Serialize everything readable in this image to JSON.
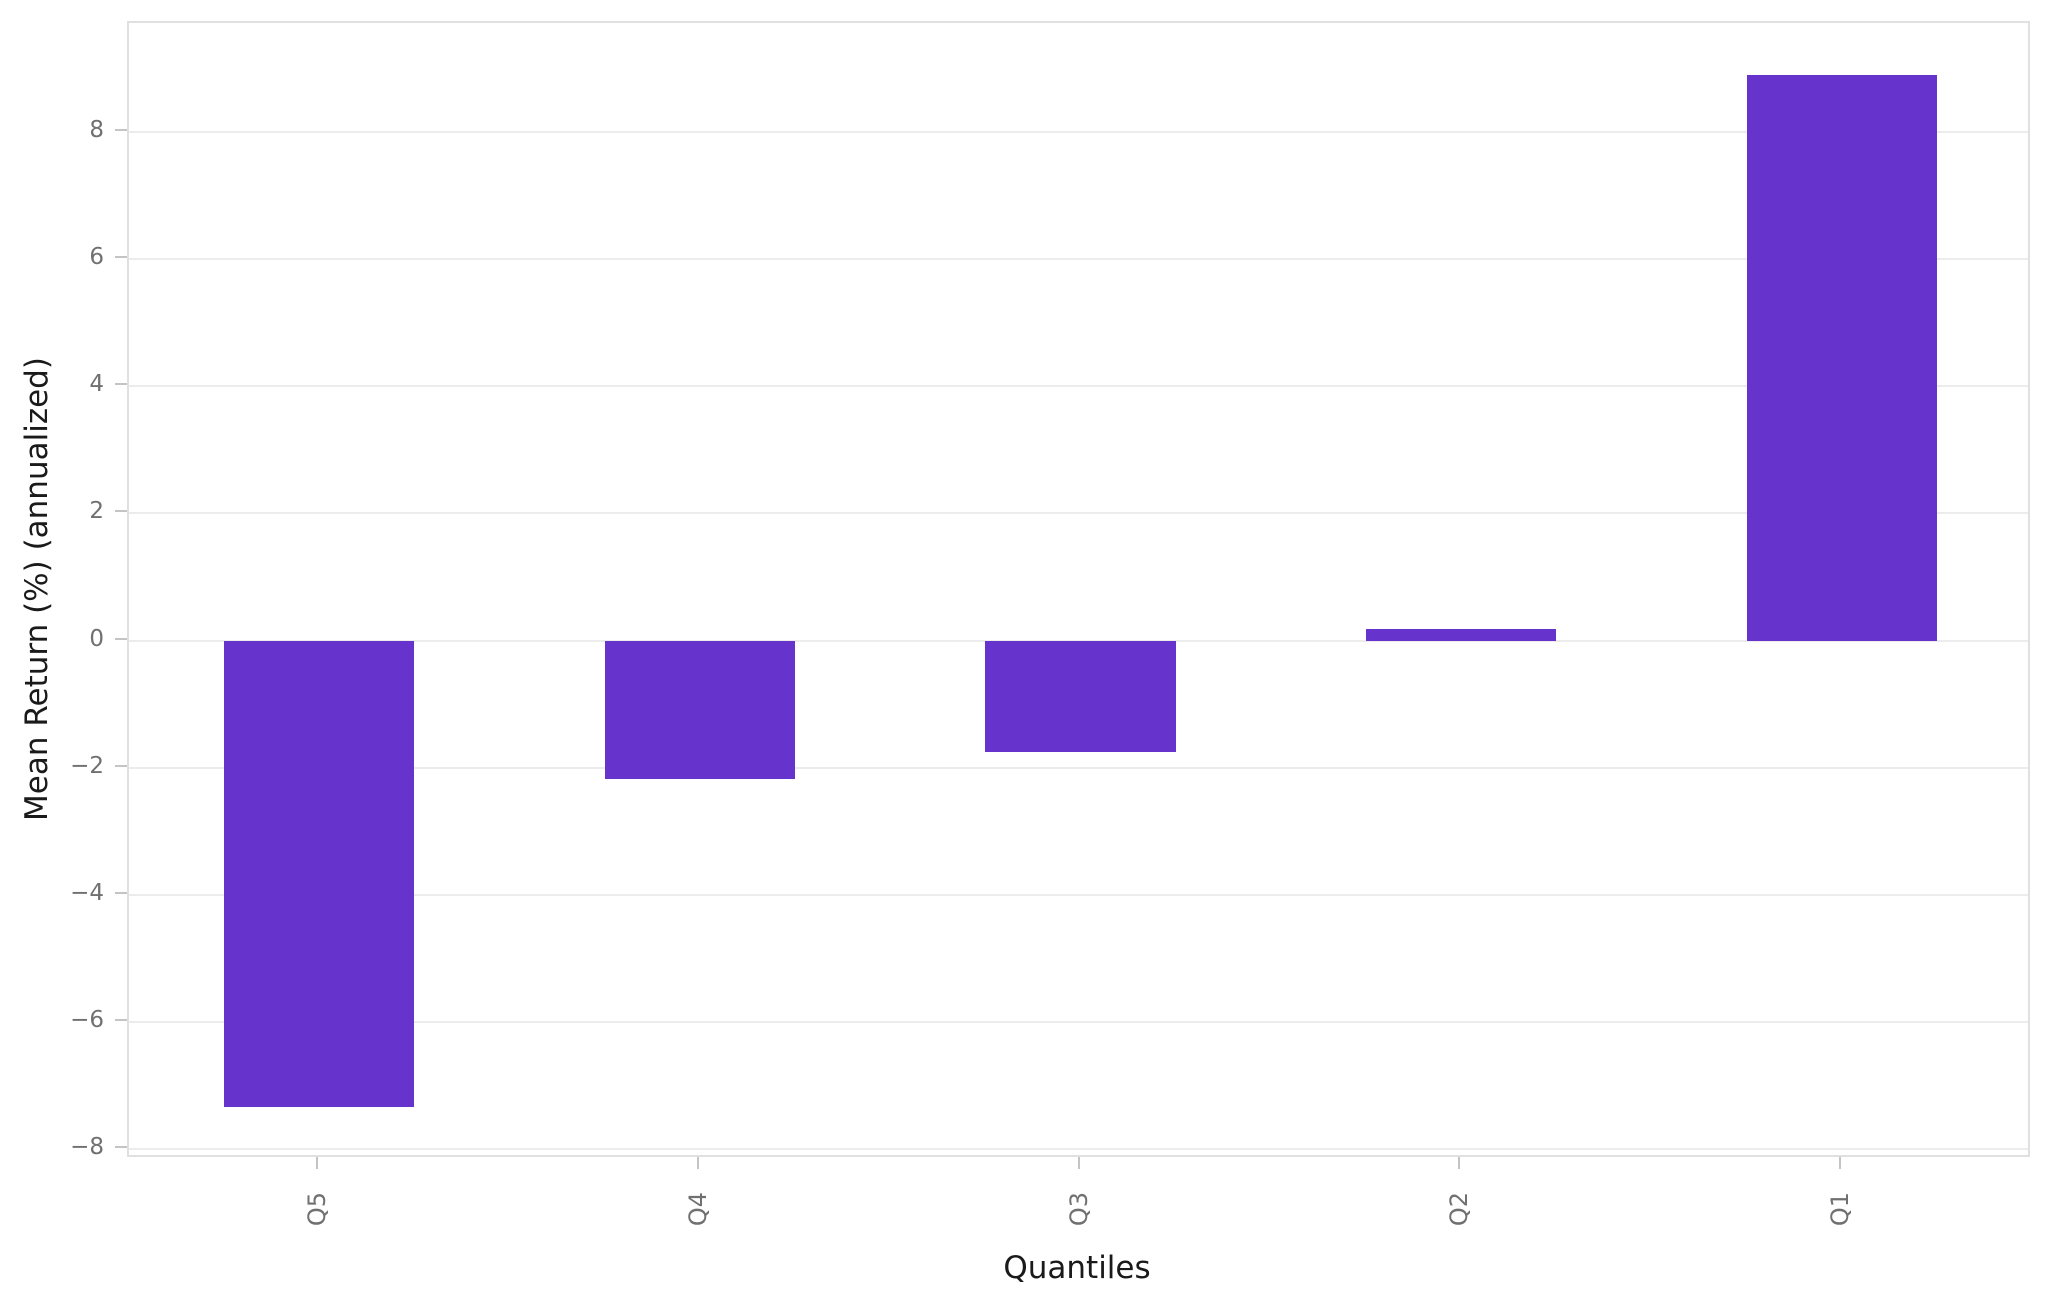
{
  "chart_data": {
    "type": "bar",
    "xlabel": "Quantiles",
    "ylabel": "Mean Return (%) (annualized)",
    "categories": [
      "Q5",
      "Q4",
      "Q3",
      "Q2",
      "Q1"
    ],
    "values": [
      -7.34,
      -2.17,
      -1.75,
      0.18,
      8.9
    ],
    "ylim": [
      -8.15,
      9.71
    ],
    "yticks": [
      -8,
      -6,
      -4,
      -2,
      0,
      2,
      4,
      6,
      8
    ],
    "ytick_labels": [
      "−8",
      "−6",
      "−4",
      "−2",
      "0",
      "2",
      "4",
      "6",
      "8"
    ],
    "xtick_rotation_deg": 90,
    "grid": "horizontal",
    "legend": "none",
    "bar_width_fraction": 0.5
  },
  "colors": {
    "bar": "#6633cc",
    "background": "#ffffff",
    "gridline": "#ececec",
    "spine": "#e0e0e0",
    "tick_mark": "#c4c4c4",
    "tick_label": "#707070",
    "axis_label": "#1a1a1a"
  }
}
